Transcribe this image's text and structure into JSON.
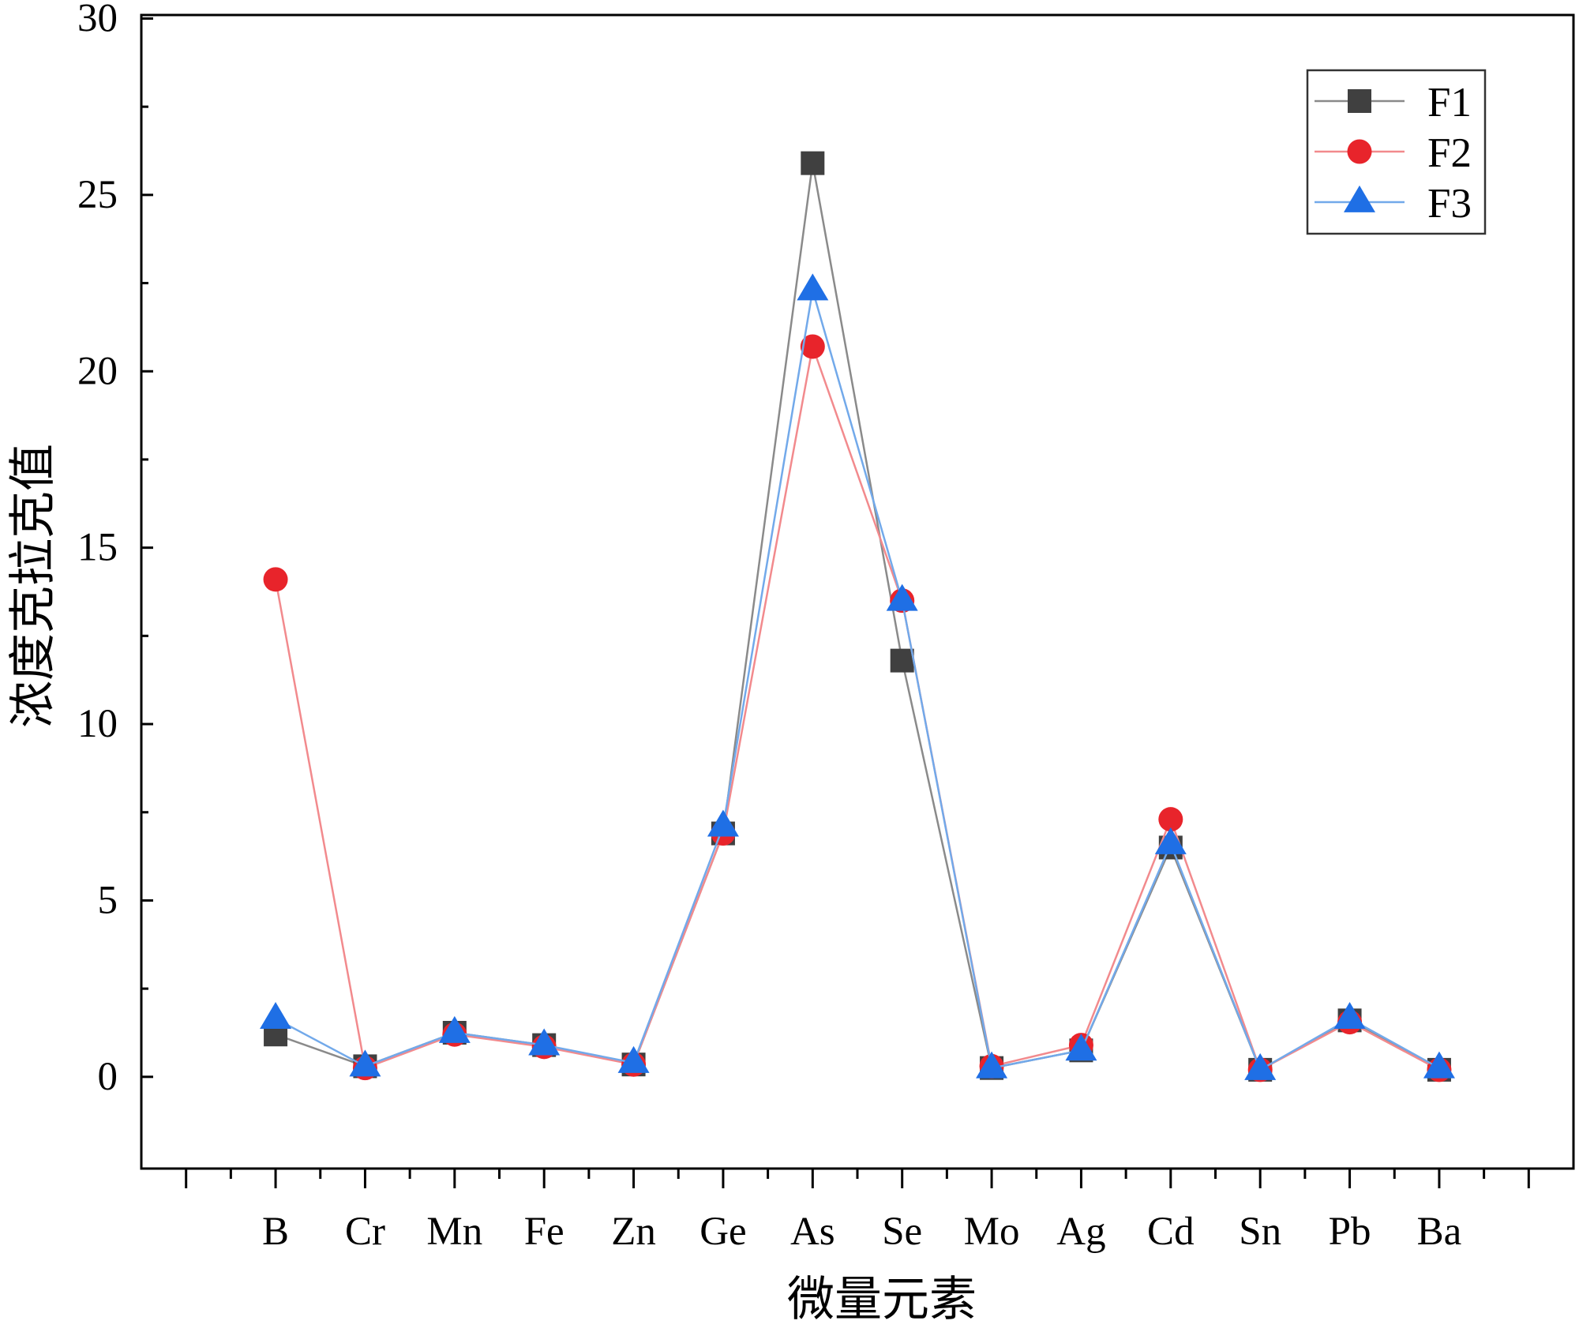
{
  "chart_data": {
    "type": "line",
    "title": "",
    "xlabel": "微量元素",
    "ylabel": "浓度克拉克值",
    "categories": [
      "B",
      "Cr",
      "Mn",
      "Fe",
      "Zn",
      "Ge",
      "As",
      "Se",
      "Mo",
      "Ag",
      "Cd",
      "Sn",
      "Pb",
      "Ba"
    ],
    "ylim": [
      -2.6,
      30.1
    ],
    "yticks": [
      0,
      5,
      10,
      15,
      20,
      25,
      30
    ],
    "grid": false,
    "legend": "top-right",
    "series": [
      {
        "name": "F1",
        "marker": "square",
        "marker_color": "#404040",
        "line_color": "#8a8a8a",
        "values": [
          1.2,
          0.3,
          1.25,
          0.9,
          0.35,
          6.9,
          25.9,
          11.8,
          0.25,
          0.75,
          6.5,
          0.2,
          1.6,
          0.2
        ]
      },
      {
        "name": "F2",
        "marker": "circle",
        "marker_color": "#e8242b",
        "line_color": "#f28a8d",
        "values": [
          14.1,
          0.25,
          1.2,
          0.85,
          0.35,
          6.9,
          20.7,
          13.5,
          0.3,
          0.9,
          7.3,
          0.2,
          1.55,
          0.2
        ]
      },
      {
        "name": "F3",
        "marker": "triangle",
        "marker_color": "#1f6fe5",
        "line_color": "#72a9ea",
        "values": [
          1.65,
          0.3,
          1.25,
          0.9,
          0.4,
          7.1,
          22.3,
          13.5,
          0.25,
          0.75,
          6.6,
          0.2,
          1.65,
          0.25
        ]
      }
    ]
  }
}
